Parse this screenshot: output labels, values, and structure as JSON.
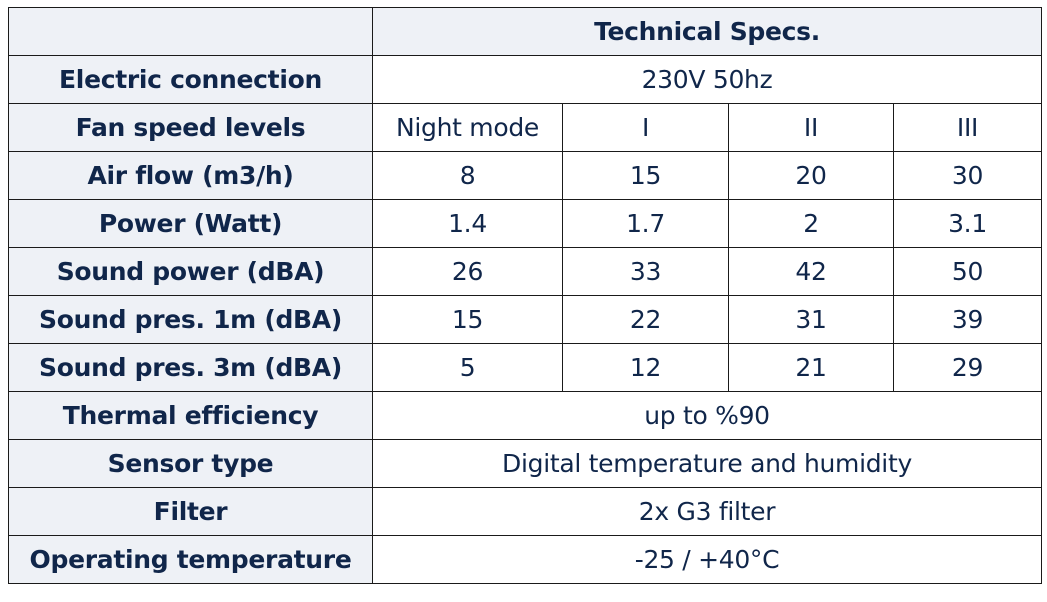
{
  "header": {
    "title": "Technical Specs."
  },
  "rows": [
    {
      "label": "Electric connection",
      "value": "230V 50hz"
    },
    {
      "label": "Fan speed levels",
      "values": [
        "Night mode",
        "I",
        "II",
        "III"
      ]
    },
    {
      "label": "Air flow (m3/h)",
      "values": [
        "8",
        "15",
        "20",
        "30"
      ]
    },
    {
      "label": "Power (Watt)",
      "values": [
        "1.4",
        "1.7",
        "2",
        "3.1"
      ]
    },
    {
      "label": "Sound power (dBA)",
      "values": [
        "26",
        "33",
        "42",
        "50"
      ]
    },
    {
      "label": "Sound pres. 1m (dBA)",
      "values": [
        "15",
        "22",
        "31",
        "39"
      ]
    },
    {
      "label": "Sound pres. 3m (dBA)",
      "values": [
        "5",
        "12",
        "21",
        "29"
      ]
    },
    {
      "label": "Thermal efficiency",
      "value": "up to %90"
    },
    {
      "label": "Sensor type",
      "value": "Digital temperature and humidity"
    },
    {
      "label": "Filter",
      "value": "2x G3 filter"
    },
    {
      "label": "Operating temperature",
      "value": "-25 / +40°C"
    }
  ]
}
